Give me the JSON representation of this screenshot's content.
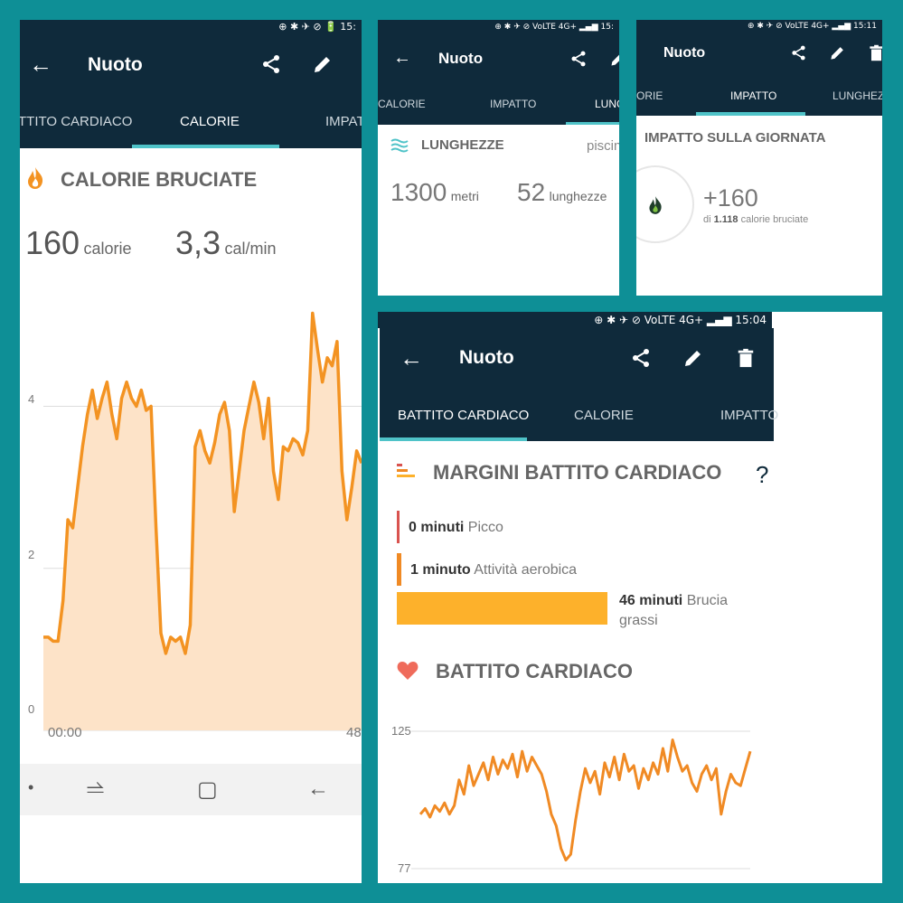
{
  "calorie_screen": {
    "status": "⊕ ✱ ✈ ⊘ 🔋 15:",
    "title": "Nuoto",
    "tabs": [
      "TTITO CARDIACO",
      "CALORIE",
      "IMPATT"
    ],
    "section_title": "CALORIE BRUCIATE",
    "calories_value": "160",
    "calories_unit": "calorie",
    "rate_value": "3,3",
    "rate_unit": "cal/min",
    "y_ticks": [
      "4",
      "2",
      "0"
    ],
    "x_ticks": [
      "00:00",
      "48"
    ],
    "nav_icons": [
      "•",
      "⥬",
      "▢",
      "←"
    ]
  },
  "laps_screen": {
    "status": "⊕ ✱ ✈ ⊘ VoLTE 4G+ ▂▄▆ 15:",
    "title": "Nuoto",
    "tabs": [
      "CALORIE",
      "IMPATTO",
      "LUNG"
    ],
    "section_title": "LUNGHEZZE",
    "pool_label": "piscin",
    "distance_value": "1300",
    "distance_unit": "metri",
    "laps_value": "52",
    "laps_unit": "lunghezze"
  },
  "impact_screen": {
    "status": "⊕ ✱ ✈ ⊘ VoLTE 4G+ ▂▄▆ 15:11",
    "title": "Nuoto",
    "tabs": [
      "ORIE",
      "IMPATTO",
      "LUNGHEZZ"
    ],
    "section_title": "IMPATTO SULLA GIORNATA",
    "impact_value": "+160",
    "impact_prefix": "di",
    "impact_total": "1.118",
    "impact_suffix": "calorie bruciate"
  },
  "hr_screen": {
    "status": "⊕ ✱ ✈ ⊘ VoLTE 4G+ ▂▄▆ 15:04",
    "title": "Nuoto",
    "tabs": [
      "BATTITO CARDIACO",
      "CALORIE",
      "IMPATTO"
    ],
    "zones_title": "MARGINI BATTITO CARDIACO",
    "help": "?",
    "zones": [
      {
        "minutes": "0 minuti",
        "name": "Picco",
        "value_min": 0,
        "color": "#d9534f"
      },
      {
        "minutes": "1 minuto",
        "name": "Attività aerobica",
        "value_min": 1,
        "color": "#f08a24"
      },
      {
        "minutes": "46 minuti",
        "name": "Brucia",
        "name2": "grassi",
        "value_min": 46,
        "color": "#fdb12b"
      }
    ],
    "hr_title": "BATTITO CARDIACO",
    "y_ticks": [
      "125",
      "77"
    ]
  },
  "colors": {
    "appbar": "#0f2a3b",
    "accent": "#4fc3c8",
    "calorie_line": "#f39322",
    "calorie_fill": "#fde3c8",
    "hr_line": "#f08a24",
    "background": "#0e8f96"
  },
  "chart_data": [
    {
      "type": "area",
      "ylim": [
        0,
        5.2
      ],
      "x_ticks": [
        "00:00",
        "48"
      ],
      "y_ticks": [
        0,
        2,
        4
      ],
      "grid": true,
      "values": [
        1.15,
        1.15,
        1.1,
        1.1,
        1.6,
        2.6,
        2.5,
        3.0,
        3.5,
        3.9,
        4.2,
        3.85,
        4.1,
        4.3,
        3.9,
        3.6,
        4.1,
        4.3,
        4.1,
        4.0,
        4.2,
        3.95,
        4.0,
        2.5,
        1.2,
        0.95,
        1.15,
        1.1,
        1.15,
        0.95,
        1.3,
        3.5,
        3.7,
        3.45,
        3.3,
        3.55,
        3.9,
        4.05,
        3.7,
        2.7,
        3.2,
        3.7,
        4.0,
        4.3,
        4.05,
        3.6,
        4.1,
        3.2,
        2.85,
        3.5,
        3.45,
        3.6,
        3.55,
        3.4,
        3.7,
        5.15,
        4.7,
        4.3,
        4.6,
        4.5,
        4.8,
        3.2,
        2.6,
        3.0,
        3.45,
        3.3
      ]
    },
    {
      "type": "line",
      "ylim": [
        77,
        125
      ],
      "y_ticks": [
        125,
        77
      ],
      "grid": true,
      "values": [
        96,
        98,
        95,
        99,
        97,
        100,
        96,
        99,
        108,
        103,
        113,
        106,
        110,
        114,
        108,
        116,
        110,
        115,
        112,
        117,
        109,
        118,
        111,
        116,
        113,
        110,
        104,
        96,
        92,
        84,
        80,
        82,
        94,
        104,
        112,
        107,
        111,
        103,
        114,
        109,
        116,
        108,
        117,
        111,
        113,
        105,
        112,
        108,
        114,
        110,
        119,
        111,
        122,
        116,
        111,
        113,
        107,
        104,
        110,
        113,
        108,
        112,
        96,
        104,
        110,
        107,
        106,
        112,
        118
      ]
    }
  ]
}
